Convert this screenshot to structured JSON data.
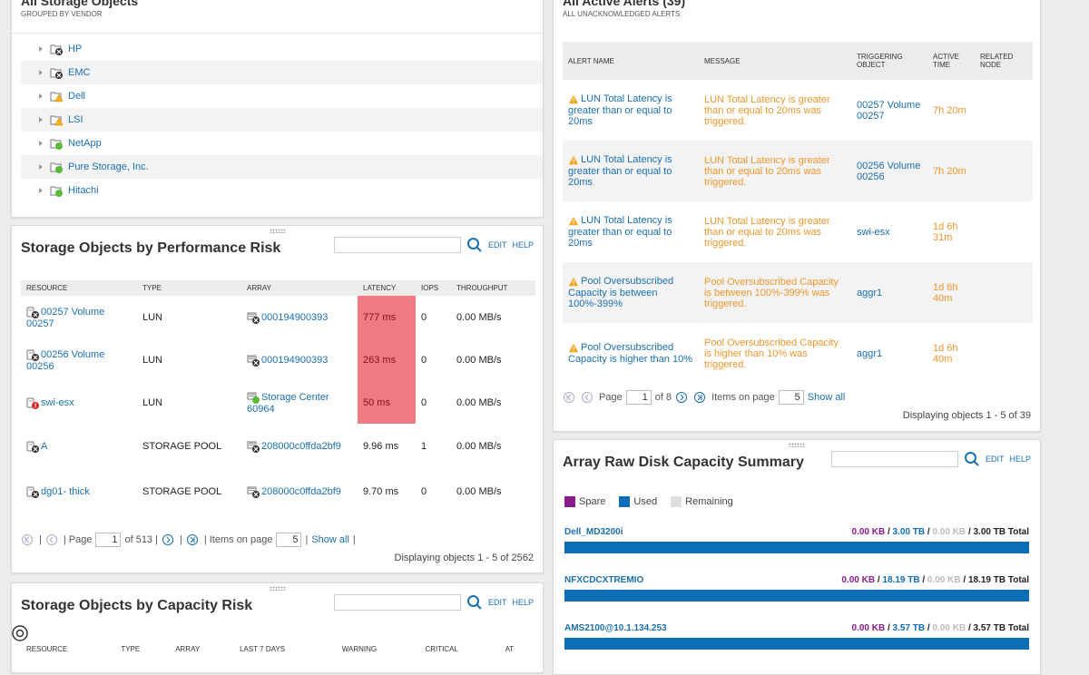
{
  "colors": {
    "link": "#1a6fb0",
    "warning": "#f0962c",
    "critical": "#ee7a83",
    "used": "#0d6eb5",
    "spare": "#8b1a8b",
    "remaining": "#dddddd"
  },
  "storage_objects": {
    "title": "All Storage Objects",
    "subtitle": "GROUPED BY VENDOR",
    "vendors": [
      {
        "name": "HP",
        "status": "critical"
      },
      {
        "name": "EMC",
        "status": "critical"
      },
      {
        "name": "Dell",
        "status": "warning"
      },
      {
        "name": "LSI",
        "status": "warning"
      },
      {
        "name": "NetApp",
        "status": "up"
      },
      {
        "name": "Pure Storage, Inc.",
        "status": "up"
      },
      {
        "name": "Hitachi",
        "status": "up"
      }
    ]
  },
  "perf_risk": {
    "title": "Storage Objects by Performance Risk",
    "edit": "EDIT",
    "help": "HELP",
    "columns": [
      "RESOURCE",
      "TYPE",
      "ARRAY",
      "LATENCY",
      "IOPS",
      "THROUGHPUT"
    ],
    "rows": [
      {
        "resource": "00257 Volume 00257",
        "type": "LUN",
        "array": "000194900393",
        "latency": "777 ms",
        "iops": "0",
        "throughput": "0.00 MB/s",
        "hi": true,
        "res_status": "critical",
        "arr_status": "critical"
      },
      {
        "resource": "00256 Volume 00256",
        "type": "LUN",
        "array": "000194900393",
        "latency": "263 ms",
        "iops": "0",
        "throughput": "0.00 MB/s",
        "hi": true,
        "res_status": "critical",
        "arr_status": "critical"
      },
      {
        "resource": "swi-esx",
        "type": "LUN",
        "array": "Storage Center 60964",
        "latency": "50 ms",
        "iops": "0",
        "throughput": "0.00 MB/s",
        "hi": true,
        "res_status": "down",
        "arr_status": "up"
      },
      {
        "resource": "A",
        "type": "STORAGE POOL",
        "array": "208000c0ffda2bf9",
        "latency": "9.96 ms",
        "iops": "1",
        "throughput": "0.00 MB/s",
        "hi": false,
        "res_status": "critical",
        "arr_status": "critical"
      },
      {
        "resource": "dg01- thick",
        "type": "STORAGE POOL",
        "array": "208000c0ffda2bf9",
        "latency": "9.70 ms",
        "iops": "0",
        "throughput": "0.00 MB/s",
        "hi": false,
        "res_status": "critical",
        "arr_status": "critical"
      }
    ],
    "pager": {
      "page_label": "| Page",
      "page": "1",
      "of": "of 513 |",
      "sep1": "|",
      "sep2": "| Items on page",
      "items": "5",
      "show_all": "Show all",
      "sep3": "|",
      "display": "Displaying objects 1 - 5 of 2562"
    }
  },
  "capacity_risk": {
    "title": "Storage Objects by Capacity Risk",
    "edit": "EDIT",
    "help": "HELP",
    "columns": [
      "RESOURCE",
      "TYPE",
      "ARRAY",
      "LAST 7 DAYS",
      "WARNING",
      "CRITICAL",
      "AT"
    ]
  },
  "alerts": {
    "title": "All Active Alerts (39)",
    "subtitle": "ALL UNACKNOWLEDGED ALERTS",
    "columns": [
      "ALERT NAME",
      "MESSAGE",
      "TRIGGERING OBJECT",
      "ACTIVE TIME",
      "RELATED NODE"
    ],
    "rows": [
      {
        "name": "LUN Total Latency is greater than or equal to 20ms",
        "message": "LUN Total Latency is greater than or equal to 20ms was triggered.",
        "object": "00257 Volume 00257",
        "time": "7h 20m"
      },
      {
        "name": "LUN Total Latency is greater than or equal to 20ms",
        "message": "LUN Total Latency is greater than or equal to 20ms was triggered.",
        "object": "00256 Volume 00256",
        "time": "7h 20m"
      },
      {
        "name": "LUN Total Latency is greater than or equal to 20ms",
        "message": "LUN Total Latency is greater than or equal to 20ms was triggered.",
        "object": "swi-esx",
        "time": "1d 6h 31m"
      },
      {
        "name": "Pool Oversubscribed Capacity is between 100%-399%",
        "message": "Pool Oversubscribed Capacity is between 100%-399% was triggered.",
        "object": "aggr1",
        "time": "1d 6h 40m"
      },
      {
        "name": "Pool Oversubscribed Capacity is higher than 10%",
        "message": "Pool Oversubscribed Capacity is higher than 10% was triggered.",
        "object": "aggr1",
        "time": "1d 6h 40m"
      }
    ],
    "pager": {
      "page_label": "Page",
      "page": "1",
      "of": "of 8",
      "items_label": "Items on page",
      "items": "5",
      "show_all": "Show all",
      "display": "Displaying objects 1 - 5 of 39"
    }
  },
  "raw_disk": {
    "title": "Array Raw Disk Capacity Summary",
    "edit": "EDIT",
    "help": "HELP",
    "legend": {
      "spare": "Spare",
      "used": "Used",
      "remaining": "Remaining"
    },
    "arrays": [
      {
        "name": "Dell_MD3200i",
        "spare": "0.00 KB",
        "used": "3.00 TB",
        "remaining": "0.00 KB",
        "total": "3.00 TB Total",
        "used_fraction": 1.0
      },
      {
        "name": "NFXCDCXTREMIO",
        "spare": "0.00 KB",
        "used": "18.19 TB",
        "remaining": "0.00 KB",
        "total": "18.19 TB Total",
        "used_fraction": 1.0
      },
      {
        "name": "AMS2100@10.1.134.253",
        "spare": "0.00 KB",
        "used": "3.57 TB",
        "remaining": "0.00 KB",
        "total": "3.57 TB Total",
        "used_fraction": 1.0
      }
    ],
    "slash": "/"
  }
}
